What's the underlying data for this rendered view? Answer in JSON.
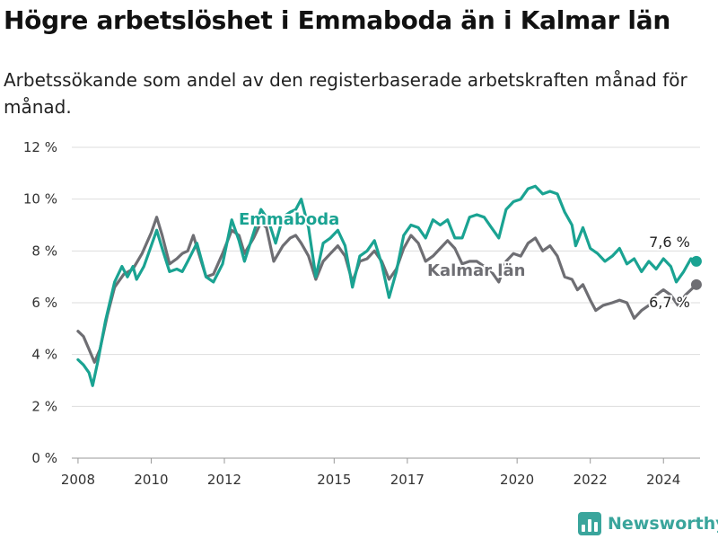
{
  "header": {
    "title": "Högre arbetslöshet i Emmaboda än i Kalmar län",
    "subtitle": "Arbetssökande som andel av den registerbaserade arbetskraften månad för månad."
  },
  "brand": {
    "name": "Newsworthy",
    "icon": "bar-chart-logo-icon",
    "color": "#3aa59c"
  },
  "chart_data": {
    "type": "line",
    "xlim": [
      2007.83,
      2025.0
    ],
    "ylim": [
      0,
      12
    ],
    "yticks": [
      0,
      2,
      4,
      6,
      8,
      10,
      12
    ],
    "ytick_labels": [
      "0 %",
      "2 %",
      "4 %",
      "6 %",
      "8 %",
      "10 %",
      "12 %"
    ],
    "xticks": [
      2008,
      2010,
      2012,
      2015,
      2017,
      2020,
      2022,
      2024
    ],
    "xtick_labels": [
      "2008",
      "2010",
      "2012",
      "2015",
      "2017",
      "2020",
      "2022",
      "2024"
    ],
    "grid": true,
    "legend": "none",
    "series": [
      {
        "name": "Emmaboda",
        "color": "#1aa392",
        "end_label": "7,6 %",
        "points": [
          [
            2008.0,
            3.8
          ],
          [
            2008.15,
            3.6
          ],
          [
            2008.3,
            3.3
          ],
          [
            2008.4,
            2.8
          ],
          [
            2008.55,
            3.8
          ],
          [
            2008.75,
            5.3
          ],
          [
            2009.0,
            6.8
          ],
          [
            2009.2,
            7.4
          ],
          [
            2009.35,
            7.0
          ],
          [
            2009.5,
            7.4
          ],
          [
            2009.6,
            6.9
          ],
          [
            2009.8,
            7.4
          ],
          [
            2010.0,
            8.2
          ],
          [
            2010.15,
            8.8
          ],
          [
            2010.3,
            8.1
          ],
          [
            2010.5,
            7.2
          ],
          [
            2010.7,
            7.3
          ],
          [
            2010.85,
            7.2
          ],
          [
            2011.0,
            7.6
          ],
          [
            2011.25,
            8.3
          ],
          [
            2011.5,
            7.0
          ],
          [
            2011.7,
            6.8
          ],
          [
            2011.95,
            7.5
          ],
          [
            2012.2,
            9.2
          ],
          [
            2012.4,
            8.4
          ],
          [
            2012.55,
            7.6
          ],
          [
            2012.8,
            8.7
          ],
          [
            2013.0,
            9.6
          ],
          [
            2013.2,
            9.2
          ],
          [
            2013.4,
            8.3
          ],
          [
            2013.6,
            9.3
          ],
          [
            2013.8,
            9.5
          ],
          [
            2013.95,
            9.6
          ],
          [
            2014.1,
            10.0
          ],
          [
            2014.3,
            8.9
          ],
          [
            2014.5,
            7.0
          ],
          [
            2014.7,
            8.3
          ],
          [
            2014.9,
            8.5
          ],
          [
            2015.1,
            8.8
          ],
          [
            2015.3,
            8.2
          ],
          [
            2015.5,
            6.6
          ],
          [
            2015.7,
            7.8
          ],
          [
            2015.9,
            8.0
          ],
          [
            2016.1,
            8.4
          ],
          [
            2016.3,
            7.5
          ],
          [
            2016.5,
            6.2
          ],
          [
            2016.7,
            7.2
          ],
          [
            2016.9,
            8.6
          ],
          [
            2017.1,
            9.0
          ],
          [
            2017.3,
            8.9
          ],
          [
            2017.5,
            8.5
          ],
          [
            2017.7,
            9.2
          ],
          [
            2017.9,
            9.0
          ],
          [
            2018.1,
            9.2
          ],
          [
            2018.3,
            8.5
          ],
          [
            2018.5,
            8.5
          ],
          [
            2018.7,
            9.3
          ],
          [
            2018.9,
            9.4
          ],
          [
            2019.1,
            9.3
          ],
          [
            2019.3,
            8.9
          ],
          [
            2019.5,
            8.5
          ],
          [
            2019.7,
            9.6
          ],
          [
            2019.9,
            9.9
          ],
          [
            2020.1,
            10.0
          ],
          [
            2020.3,
            10.4
          ],
          [
            2020.5,
            10.5
          ],
          [
            2020.7,
            10.2
          ],
          [
            2020.9,
            10.3
          ],
          [
            2021.1,
            10.2
          ],
          [
            2021.3,
            9.5
          ],
          [
            2021.5,
            9.0
          ],
          [
            2021.6,
            8.2
          ],
          [
            2021.8,
            8.9
          ],
          [
            2022.0,
            8.1
          ],
          [
            2022.2,
            7.9
          ],
          [
            2022.4,
            7.6
          ],
          [
            2022.6,
            7.8
          ],
          [
            2022.8,
            8.1
          ],
          [
            2023.0,
            7.5
          ],
          [
            2023.2,
            7.7
          ],
          [
            2023.4,
            7.2
          ],
          [
            2023.6,
            7.6
          ],
          [
            2023.8,
            7.3
          ],
          [
            2024.0,
            7.7
          ],
          [
            2024.2,
            7.4
          ],
          [
            2024.35,
            6.8
          ],
          [
            2024.55,
            7.2
          ],
          [
            2024.75,
            7.7
          ],
          [
            2024.9,
            7.6
          ]
        ]
      },
      {
        "name": "Kalmar län",
        "color": "#6e6e73",
        "end_label": "6,7 %",
        "points": [
          [
            2008.0,
            4.9
          ],
          [
            2008.15,
            4.7
          ],
          [
            2008.3,
            4.2
          ],
          [
            2008.45,
            3.7
          ],
          [
            2008.6,
            4.2
          ],
          [
            2008.8,
            5.5
          ],
          [
            2009.0,
            6.6
          ],
          [
            2009.25,
            7.1
          ],
          [
            2009.5,
            7.3
          ],
          [
            2009.75,
            7.9
          ],
          [
            2010.0,
            8.7
          ],
          [
            2010.15,
            9.3
          ],
          [
            2010.3,
            8.6
          ],
          [
            2010.5,
            7.5
          ],
          [
            2010.7,
            7.7
          ],
          [
            2010.85,
            7.9
          ],
          [
            2011.0,
            8.0
          ],
          [
            2011.15,
            8.6
          ],
          [
            2011.3,
            7.9
          ],
          [
            2011.5,
            7.0
          ],
          [
            2011.7,
            7.1
          ],
          [
            2011.95,
            7.9
          ],
          [
            2012.2,
            8.8
          ],
          [
            2012.4,
            8.6
          ],
          [
            2012.55,
            7.9
          ],
          [
            2012.8,
            8.5
          ],
          [
            2013.0,
            9.1
          ],
          [
            2013.15,
            8.9
          ],
          [
            2013.35,
            7.6
          ],
          [
            2013.6,
            8.2
          ],
          [
            2013.8,
            8.5
          ],
          [
            2013.95,
            8.6
          ],
          [
            2014.1,
            8.3
          ],
          [
            2014.3,
            7.8
          ],
          [
            2014.5,
            6.9
          ],
          [
            2014.7,
            7.6
          ],
          [
            2014.9,
            7.9
          ],
          [
            2015.1,
            8.2
          ],
          [
            2015.3,
            7.8
          ],
          [
            2015.5,
            6.8
          ],
          [
            2015.7,
            7.6
          ],
          [
            2015.9,
            7.7
          ],
          [
            2016.1,
            8.0
          ],
          [
            2016.3,
            7.6
          ],
          [
            2016.5,
            6.9
          ],
          [
            2016.7,
            7.3
          ],
          [
            2016.9,
            8.1
          ],
          [
            2017.1,
            8.6
          ],
          [
            2017.3,
            8.3
          ],
          [
            2017.5,
            7.6
          ],
          [
            2017.7,
            7.8
          ],
          [
            2017.9,
            8.1
          ],
          [
            2018.1,
            8.4
          ],
          [
            2018.3,
            8.1
          ],
          [
            2018.5,
            7.5
          ],
          [
            2018.7,
            7.6
          ],
          [
            2018.9,
            7.6
          ],
          [
            2019.1,
            7.4
          ],
          [
            2019.3,
            7.2
          ],
          [
            2019.5,
            6.8
          ],
          [
            2019.7,
            7.6
          ],
          [
            2019.9,
            7.9
          ],
          [
            2020.1,
            7.8
          ],
          [
            2020.3,
            8.3
          ],
          [
            2020.5,
            8.5
          ],
          [
            2020.7,
            8.0
          ],
          [
            2020.9,
            8.2
          ],
          [
            2021.1,
            7.8
          ],
          [
            2021.3,
            7.0
          ],
          [
            2021.5,
            6.9
          ],
          [
            2021.65,
            6.5
          ],
          [
            2021.8,
            6.7
          ],
          [
            2022.0,
            6.1
          ],
          [
            2022.15,
            5.7
          ],
          [
            2022.35,
            5.9
          ],
          [
            2022.6,
            6.0
          ],
          [
            2022.8,
            6.1
          ],
          [
            2023.0,
            6.0
          ],
          [
            2023.2,
            5.4
          ],
          [
            2023.4,
            5.7
          ],
          [
            2023.6,
            5.9
          ],
          [
            2023.8,
            6.3
          ],
          [
            2024.0,
            6.5
          ],
          [
            2024.2,
            6.3
          ],
          [
            2024.4,
            5.9
          ],
          [
            2024.6,
            6.3
          ],
          [
            2024.75,
            6.5
          ],
          [
            2024.9,
            6.7
          ]
        ]
      }
    ]
  }
}
